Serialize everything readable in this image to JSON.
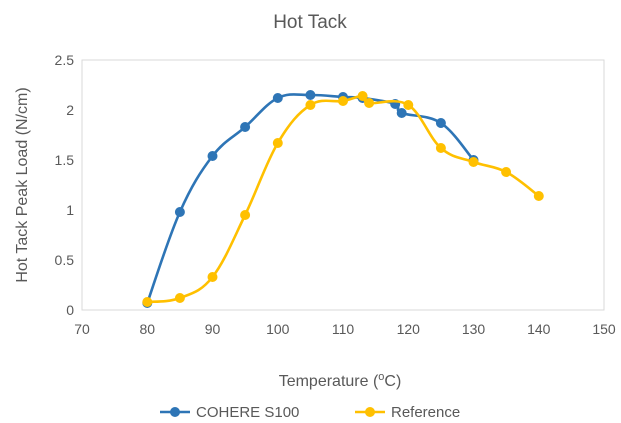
{
  "chart_data": {
    "type": "line",
    "title": "Hot Tack",
    "xlabel": "Temperature (",
    "xlabel_sup": "o",
    "xlabel_unit": "C)",
    "ylabel": "Hot Tack Peak Load (N/cm)",
    "xlim": [
      70,
      150
    ],
    "ylim": [
      0,
      2.5
    ],
    "x_ticks": [
      "70",
      "80",
      "90",
      "100",
      "110",
      "120",
      "130",
      "140",
      "150"
    ],
    "y_ticks": [
      "0",
      "0.5",
      "1",
      "1.5",
      "2",
      "2.5"
    ],
    "grid": false,
    "legend_position": "bottom",
    "series": [
      {
        "name": "COHERE S100",
        "color": "#2E75B6",
        "x": [
          80,
          85,
          90,
          95,
          100,
          105,
          110,
          113,
          118,
          119,
          125,
          130
        ],
        "y": [
          0.07,
          0.98,
          1.54,
          1.83,
          2.12,
          2.15,
          2.13,
          2.12,
          2.06,
          1.97,
          1.87,
          1.5
        ]
      },
      {
        "name": "Reference",
        "color": "#FFC000",
        "x": [
          80,
          85,
          90,
          95,
          100,
          105,
          110,
          113,
          114,
          120,
          125,
          130,
          135,
          140
        ],
        "y": [
          0.08,
          0.12,
          0.33,
          0.95,
          1.67,
          2.05,
          2.09,
          2.14,
          2.07,
          2.05,
          1.62,
          1.48,
          1.38,
          1.14
        ]
      }
    ]
  }
}
